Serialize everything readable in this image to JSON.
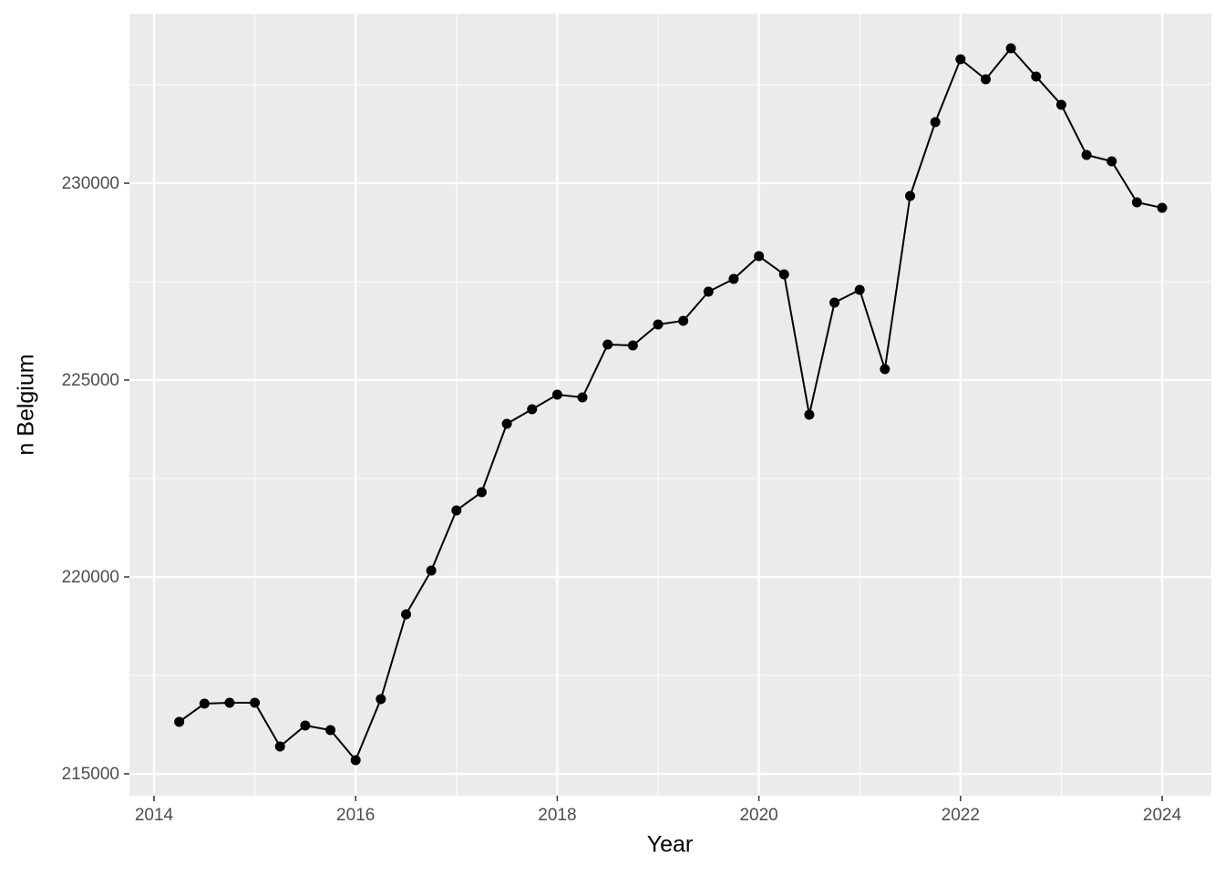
{
  "chart_data": {
    "type": "line",
    "x_label": "Year",
    "y_label": "n Belgium",
    "x": [
      2014.25,
      2014.5,
      2014.75,
      2015.0,
      2015.25,
      2015.5,
      2015.75,
      2016.0,
      2016.25,
      2016.5,
      2016.75,
      2017.0,
      2017.25,
      2017.5,
      2017.75,
      2018.0,
      2018.25,
      2018.5,
      2018.75,
      2019.0,
      2019.25,
      2019.5,
      2019.75,
      2020.0,
      2020.25,
      2020.5,
      2020.75,
      2021.0,
      2021.25,
      2021.5,
      2021.75,
      2022.0,
      2022.25,
      2022.5,
      2022.75,
      2023.0,
      2023.25,
      2023.5,
      2023.75,
      2024.0
    ],
    "values": [
      216320,
      216782,
      216805,
      216805,
      215695,
      216227,
      216111,
      215347,
      216898,
      219051,
      220162,
      221690,
      222153,
      223889,
      224259,
      224630,
      224560,
      225903,
      225880,
      226412,
      226505,
      227245,
      227569,
      228148,
      227685,
      224120,
      226968,
      227292,
      225278,
      229676,
      231551,
      233148,
      232639,
      233426,
      232708,
      231991,
      230718,
      230556,
      229514,
      229375
    ],
    "color": "#000000",
    "xlim": [
      2013.756,
      2024.488
    ],
    "xticks": [
      2014,
      2016,
      2018,
      2020,
      2022,
      2024
    ],
    "ylim": [
      214444,
      234306
    ],
    "yticks": [
      215000,
      220000,
      225000,
      230000
    ],
    "grid": true
  }
}
